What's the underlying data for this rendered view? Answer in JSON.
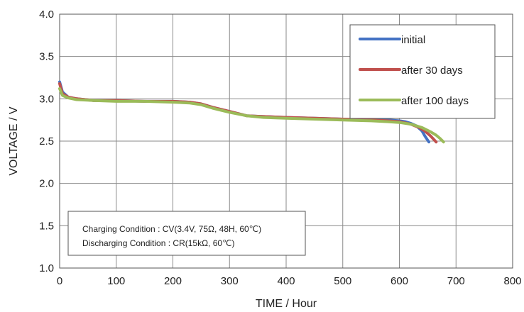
{
  "chart_data": {
    "type": "line",
    "title": "",
    "xlabel": "TIME / Hour",
    "ylabel": "VOLTAGE / V",
    "xlim": [
      0,
      800
    ],
    "ylim": [
      1.0,
      4.0
    ],
    "xticks": [
      0,
      100,
      200,
      300,
      400,
      500,
      600,
      700,
      800
    ],
    "yticks": [
      1.0,
      1.5,
      2.0,
      2.5,
      3.0,
      3.5,
      4.0
    ],
    "ytick_labels": [
      "1.0",
      "1.5",
      "2.0",
      "2.5",
      "3.0",
      "3.5",
      "4.0"
    ],
    "grid": true,
    "legend_position": "top-right",
    "series": [
      {
        "name": "initial",
        "color": "#4472C4",
        "x": [
          0,
          5,
          15,
          30,
          60,
          100,
          150,
          200,
          230,
          250,
          270,
          300,
          330,
          360,
          400,
          450,
          500,
          550,
          580,
          600,
          610,
          620,
          630,
          640,
          645,
          652
        ],
        "y": [
          3.2,
          3.08,
          3.02,
          3.0,
          2.98,
          2.98,
          2.97,
          2.97,
          2.96,
          2.94,
          2.9,
          2.85,
          2.8,
          2.79,
          2.78,
          2.77,
          2.76,
          2.75,
          2.75,
          2.74,
          2.73,
          2.71,
          2.68,
          2.62,
          2.56,
          2.49
        ]
      },
      {
        "name": "after 30 days",
        "color": "#C0504D",
        "x": [
          0,
          5,
          15,
          30,
          60,
          100,
          150,
          200,
          230,
          250,
          270,
          300,
          330,
          360,
          400,
          450,
          500,
          550,
          580,
          600,
          620,
          635,
          645,
          655,
          665
        ],
        "y": [
          3.18,
          3.06,
          3.02,
          3.0,
          2.98,
          2.98,
          2.97,
          2.97,
          2.96,
          2.94,
          2.9,
          2.85,
          2.8,
          2.79,
          2.78,
          2.77,
          2.76,
          2.75,
          2.74,
          2.73,
          2.7,
          2.66,
          2.62,
          2.56,
          2.49
        ]
      },
      {
        "name": "after 100 days",
        "color": "#9BBB59",
        "x": [
          0,
          5,
          15,
          30,
          60,
          100,
          150,
          200,
          230,
          250,
          270,
          300,
          330,
          360,
          400,
          450,
          500,
          550,
          580,
          600,
          620,
          640,
          655,
          665,
          672,
          678
        ],
        "y": [
          3.12,
          3.04,
          3.01,
          2.99,
          2.98,
          2.97,
          2.97,
          2.96,
          2.95,
          2.93,
          2.89,
          2.84,
          2.8,
          2.78,
          2.77,
          2.76,
          2.75,
          2.74,
          2.73,
          2.72,
          2.7,
          2.66,
          2.61,
          2.57,
          2.53,
          2.49
        ]
      }
    ],
    "annotation": [
      "Charging Condition : CV(3.4V, 75Ω, 48H, 60℃)",
      "Discharging Condition : CR(15kΩ, 60℃)"
    ]
  }
}
